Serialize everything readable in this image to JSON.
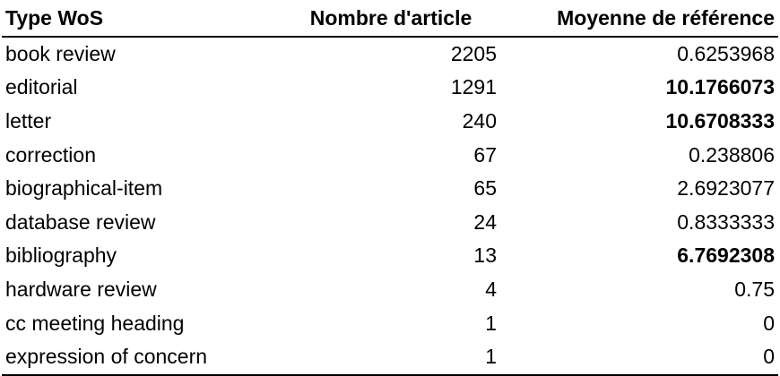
{
  "table": {
    "headers": [
      "Type WoS",
      "Nombre d'article",
      "Moyenne de référence"
    ],
    "rows": [
      {
        "type": "book review",
        "count": "2205",
        "mean": "0.6253968",
        "bold": false
      },
      {
        "type": "editorial",
        "count": "1291",
        "mean": "10.1766073",
        "bold": true
      },
      {
        "type": "letter",
        "count": "240",
        "mean": "10.6708333",
        "bold": true
      },
      {
        "type": "correction",
        "count": "67",
        "mean": "0.238806",
        "bold": false
      },
      {
        "type": "biographical-item",
        "count": "65",
        "mean": "2.6923077",
        "bold": false
      },
      {
        "type": "database review",
        "count": "24",
        "mean": "0.8333333",
        "bold": false
      },
      {
        "type": "bibliography",
        "count": "13",
        "mean": "6.7692308",
        "bold": true
      },
      {
        "type": "hardware review",
        "count": "4",
        "mean": "0.75",
        "bold": false
      },
      {
        "type": "cc meeting heading",
        "count": "1",
        "mean": "0",
        "bold": false
      },
      {
        "type": "expression of concern",
        "count": "1",
        "mean": "0",
        "bold": false
      }
    ]
  }
}
